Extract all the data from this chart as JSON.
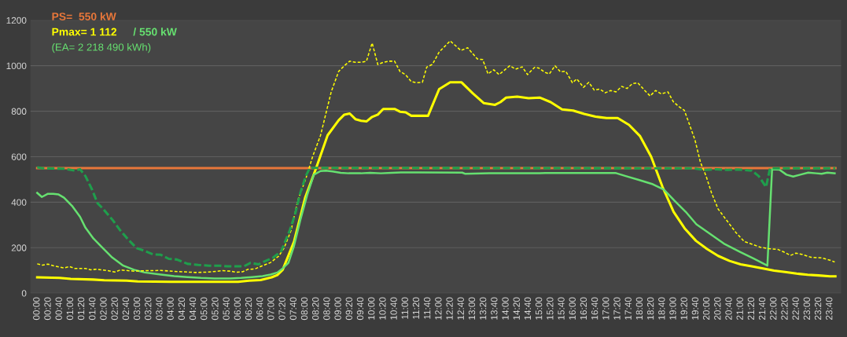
{
  "chart_data": {
    "type": "line",
    "legend": "top left",
    "grid": "y",
    "annotations": [
      "(EA= 2 218 490 kWh)"
    ],
    "ylim": [
      0,
      1200
    ],
    "yticks": [
      0,
      200,
      400,
      600,
      800,
      1000,
      1200
    ],
    "xlim": [
      -0.2,
      24.0
    ],
    "xticks": [
      {
        "value": 0,
        "label": "00:00"
      },
      {
        "value": 0.3333,
        "label": "00:20"
      },
      {
        "value": 0.6667,
        "label": "00:40"
      },
      {
        "value": 1,
        "label": "01:00"
      },
      {
        "value": 1.3333,
        "label": "01:20"
      },
      {
        "value": 1.6667,
        "label": "01:40"
      },
      {
        "value": 2,
        "label": "02:00"
      },
      {
        "value": 2.3333,
        "label": "02:20"
      },
      {
        "value": 2.6667,
        "label": "02:40"
      },
      {
        "value": 3,
        "label": "03:00"
      },
      {
        "value": 3.3333,
        "label": "03:20"
      },
      {
        "value": 3.6667,
        "label": "03:40"
      },
      {
        "value": 4,
        "label": "04:00"
      },
      {
        "value": 4.3333,
        "label": "04:20"
      },
      {
        "value": 4.6667,
        "label": "04:40"
      },
      {
        "value": 5,
        "label": "05:00"
      },
      {
        "value": 5.3333,
        "label": "05:20"
      },
      {
        "value": 5.6667,
        "label": "05:40"
      },
      {
        "value": 6,
        "label": "06:00"
      },
      {
        "value": 6.3333,
        "label": "06:20"
      },
      {
        "value": 6.6667,
        "label": "06:40"
      },
      {
        "value": 7,
        "label": "07:00"
      },
      {
        "value": 7.3333,
        "label": "07:20"
      },
      {
        "value": 7.6667,
        "label": "07:40"
      },
      {
        "value": 8,
        "label": "08:00"
      },
      {
        "value": 8.3333,
        "label": "08:20"
      },
      {
        "value": 8.6667,
        "label": "08:40"
      },
      {
        "value": 9,
        "label": "09:00"
      },
      {
        "value": 9.3333,
        "label": "09:20"
      },
      {
        "value": 9.6667,
        "label": "09:40"
      },
      {
        "value": 10,
        "label": "10:00"
      },
      {
        "value": 10.3333,
        "label": "10:20"
      },
      {
        "value": 10.6667,
        "label": "10:40"
      },
      {
        "value": 11,
        "label": "11:00"
      },
      {
        "value": 11.3333,
        "label": "11:20"
      },
      {
        "value": 11.6667,
        "label": "11:40"
      },
      {
        "value": 12,
        "label": "12:00"
      },
      {
        "value": 12.3333,
        "label": "12:20"
      },
      {
        "value": 12.6667,
        "label": "12:40"
      },
      {
        "value": 13,
        "label": "13:00"
      },
      {
        "value": 13.3333,
        "label": "13:20"
      },
      {
        "value": 13.6667,
        "label": "13:40"
      },
      {
        "value": 14,
        "label": "14:00"
      },
      {
        "value": 14.3333,
        "label": "14:20"
      },
      {
        "value": 14.6667,
        "label": "14:40"
      },
      {
        "value": 15,
        "label": "15:00"
      },
      {
        "value": 15.3333,
        "label": "15:20"
      },
      {
        "value": 15.6667,
        "label": "15:40"
      },
      {
        "value": 16,
        "label": "16:00"
      },
      {
        "value": 16.3333,
        "label": "16:20"
      },
      {
        "value": 16.6667,
        "label": "16:40"
      },
      {
        "value": 17,
        "label": "17:00"
      },
      {
        "value": 17.3333,
        "label": "17:20"
      },
      {
        "value": 17.6667,
        "label": "17:40"
      },
      {
        "value": 18,
        "label": "18:00"
      },
      {
        "value": 18.3333,
        "label": "18:20"
      },
      {
        "value": 18.6667,
        "label": "18:40"
      },
      {
        "value": 19,
        "label": "19:00"
      },
      {
        "value": 19.3333,
        "label": "19:20"
      },
      {
        "value": 19.6667,
        "label": "19:40"
      },
      {
        "value": 20,
        "label": "20:00"
      },
      {
        "value": 20.3333,
        "label": "20:20"
      },
      {
        "value": 20.6667,
        "label": "20:40"
      },
      {
        "value": 21,
        "label": "21:00"
      },
      {
        "value": 21.3333,
        "label": "21:20"
      },
      {
        "value": 21.6667,
        "label": "21:40"
      },
      {
        "value": 22,
        "label": "22:00"
      },
      {
        "value": 22.3333,
        "label": "22:20"
      },
      {
        "value": 22.6667,
        "label": "22:40"
      },
      {
        "value": 23,
        "label": "23:00"
      },
      {
        "value": 23.3333,
        "label": "23:20"
      },
      {
        "value": 23.6667,
        "label": "23:40"
      }
    ],
    "series": [
      {
        "name": "PS=  550 kW",
        "color": "#e8773a",
        "line_style": "solid",
        "x": [
          0,
          23.83
        ],
        "values": [
          550,
          550
        ]
      },
      {
        "name": "Pmax= 1 112",
        "color": "#ffff00",
        "line_style": "solid",
        "x": [
          0,
          0.67,
          1,
          1.67,
          2,
          2.67,
          3,
          4,
          5,
          6,
          6.33,
          6.67,
          7,
          7.17,
          7.33,
          7.67,
          8,
          8.33,
          8.67,
          9,
          9.17,
          9.33,
          9.5,
          9.67,
          9.83,
          10,
          10.17,
          10.33,
          10.67,
          10.83,
          11,
          11.17,
          11.33,
          11.67,
          12,
          12.33,
          12.67,
          13,
          13.33,
          13.67,
          13.83,
          14,
          14.33,
          14.67,
          15,
          15.33,
          15.67,
          16,
          16.33,
          16.67,
          17,
          17.33,
          17.67,
          18,
          18.33,
          18.67,
          19,
          19.33,
          19.67,
          20,
          20.33,
          20.67,
          21,
          21.33,
          21.67,
          22,
          22.33,
          22.67,
          23,
          23.33,
          23.67,
          23.83
        ],
        "values": [
          70,
          67,
          63,
          60,
          57,
          55,
          52,
          50,
          50,
          50,
          55,
          58,
          70,
          80,
          103,
          228,
          420,
          551,
          694,
          760,
          785,
          790,
          765,
          758,
          755,
          775,
          785,
          810,
          810,
          798,
          795,
          780,
          780,
          780,
          897,
          927,
          927,
          879,
          836,
          828,
          840,
          860,
          864,
          857,
          860,
          840,
          808,
          803,
          788,
          776,
          770,
          770,
          740,
          690,
          600,
          467,
          358,
          285,
          230,
          194,
          164,
          142,
          127,
          118,
          109,
          99,
          93,
          86,
          81,
          78,
          74,
          74
        ]
      },
      {
        "name": "/ 550 kW",
        "color": "#66e070",
        "line_style": "solid",
        "x": [
          0,
          0.14,
          0.32,
          0.48,
          0.64,
          0.8,
          1.04,
          1.28,
          1.44,
          1.68,
          1.92,
          2.24,
          2.57,
          2.89,
          3.21,
          3.69,
          4.09,
          4.49,
          4.89,
          5.29,
          5.77,
          6.09,
          6.41,
          6.73,
          6.97,
          7.17,
          7.33,
          7.5,
          7.66,
          7.86,
          8.06,
          8.26,
          8.46,
          8.62,
          8.82,
          9.06,
          9.3,
          9.66,
          9.94,
          10.26,
          10.58,
          10.9,
          11.38,
          12.69,
          12.77,
          13.5,
          15.0,
          15.17,
          17.28,
          17.57,
          17.98,
          18.38,
          18.71,
          19.03,
          19.36,
          19.68,
          20.09,
          20.5,
          20.98,
          21.39,
          21.8,
          21.94,
          22.16,
          22.37,
          22.57,
          22.78,
          23.02,
          23.26,
          23.42,
          23.59,
          23.81
        ],
        "values": [
          441,
          423,
          437,
          437,
          434,
          420,
          384,
          336,
          288,
          240,
          204,
          157,
          121,
          103,
          91,
          82,
          75,
          71,
          67,
          65,
          65,
          67,
          71,
          75,
          82,
          91,
          109,
          133,
          204,
          324,
          431,
          521,
          537,
          539,
          535,
          529,
          527,
          527,
          529,
          527,
          529,
          531,
          531,
          530,
          525,
          527,
          527,
          528,
          528,
          515,
          497,
          479,
          455,
          406,
          358,
          303,
          261,
          218,
          182,
          152,
          121,
          545,
          543,
          521,
          513,
          521,
          530,
          527,
          525,
          530,
          527
        ]
      },
      {
        "color": "#ffff00",
        "line_style": "dotted",
        "x": [
          0,
          0.16,
          0.32,
          0.48,
          0.8,
          0.96,
          1.12,
          1.44,
          1.6,
          1.76,
          2.08,
          2.32,
          2.48,
          2.89,
          3.29,
          3.69,
          4.09,
          4.49,
          4.73,
          5.13,
          5.53,
          5.77,
          5.93,
          6.13,
          6.29,
          6.49,
          6.73,
          6.97,
          7.21,
          7.37,
          7.58,
          7.78,
          8.02,
          8.22,
          8.46,
          8.62,
          8.78,
          9.0,
          9.17,
          9.33,
          9.5,
          9.67,
          9.83,
          10.0,
          10.17,
          10.33,
          10.5,
          10.67,
          10.83,
          11.0,
          11.17,
          11.33,
          11.5,
          11.63,
          11.8,
          12.0,
          12.33,
          12.65,
          12.85,
          13.14,
          13.3,
          13.46,
          13.63,
          13.79,
          14.11,
          14.28,
          14.48,
          14.64,
          14.85,
          14.97,
          15.17,
          15.29,
          15.46,
          15.62,
          15.78,
          15.98,
          16.11,
          16.31,
          16.47,
          16.63,
          16.8,
          16.96,
          17.12,
          17.28,
          17.45,
          17.61,
          17.77,
          17.93,
          18.14,
          18.3,
          18.46,
          18.63,
          18.83,
          18.99,
          19.15,
          19.32,
          19.48,
          19.64,
          19.8,
          19.97,
          20.13,
          20.33,
          20.58,
          20.86,
          21.11,
          21.35,
          21.59,
          21.84,
          22.12,
          22.28,
          22.49,
          22.65,
          22.85,
          23.1,
          23.42,
          23.67,
          23.81
        ],
        "values": [
          129,
          123,
          128,
          121,
          111,
          117,
          109,
          109,
          103,
          105,
          100,
          93,
          102,
          97,
          99,
          100,
          96,
          93,
          91,
          93,
          99,
          97,
          92,
          94,
          105,
          106,
          121,
          135,
          163,
          198,
          276,
          408,
          503,
          599,
          694,
          790,
          886,
          975,
          1000,
          1020,
          1015,
          1015,
          1020,
          1100,
          1005,
          1015,
          1020,
          1020,
          975,
          960,
          930,
          925,
          927,
          994,
          1006,
          1060,
          1109,
          1067,
          1079,
          1030,
          1027,
          964,
          982,
          961,
          1000,
          985,
          995,
          961,
          993,
          990,
          970,
          964,
          1000,
          973,
          976,
          925,
          942,
          905,
          927,
          893,
          897,
          881,
          891,
          885,
          909,
          900,
          921,
          925,
          891,
          867,
          891,
          876,
          885,
          842,
          821,
          804,
          739,
          673,
          576,
          515,
          442,
          370,
          321,
          267,
          227,
          215,
          202,
          196,
          192,
          182,
          166,
          176,
          170,
          158,
          155,
          145,
          137
        ]
      },
      {
        "color": "#1f9e4c",
        "line_style": "dashed",
        "x": [
          0,
          0.16,
          0.8,
          1.12,
          1.28,
          1.44,
          1.64,
          1.8,
          1.96,
          2.24,
          2.48,
          2.73,
          2.97,
          3.21,
          3.45,
          3.69,
          3.93,
          4.17,
          4.49,
          4.81,
          5.13,
          5.45,
          5.69,
          5.93,
          6.17,
          6.37,
          6.61,
          6.81,
          7.05,
          7.29,
          7.54,
          7.7,
          7.86,
          8.02,
          8.14,
          19.6,
          19.93,
          20.27,
          20.6,
          20.93,
          21.33,
          21.54,
          21.76,
          21.88,
          23.83
        ],
        "values": [
          553,
          549,
          547,
          539,
          545,
          515,
          455,
          396,
          372,
          324,
          276,
          234,
          198,
          186,
          171,
          169,
          151,
          148,
          129,
          124,
          121,
          121,
          118,
          118,
          118,
          133,
          127,
          141,
          157,
          186,
          276,
          348,
          443,
          515,
          551,
          549,
          542,
          545,
          542,
          544,
          539,
          515,
          467,
          549,
          549
        ]
      }
    ]
  }
}
